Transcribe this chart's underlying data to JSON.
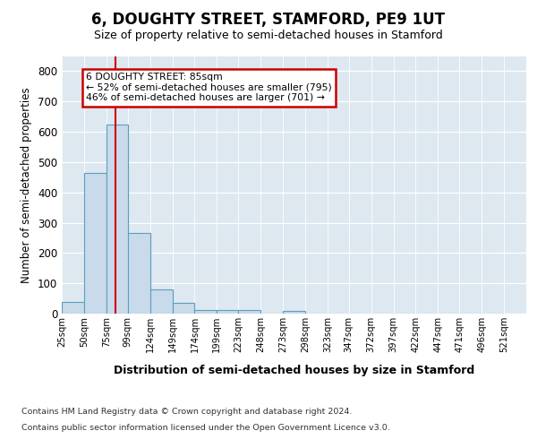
{
  "title": "6, DOUGHTY STREET, STAMFORD, PE9 1UT",
  "subtitle": "Size of property relative to semi-detached houses in Stamford",
  "xlabel": "Distribution of semi-detached houses by size in Stamford",
  "ylabel": "Number of semi-detached properties",
  "bins": [
    "25sqm",
    "50sqm",
    "75sqm",
    "99sqm",
    "124sqm",
    "149sqm",
    "174sqm",
    "199sqm",
    "223sqm",
    "248sqm",
    "273sqm",
    "298sqm",
    "323sqm",
    "347sqm",
    "372sqm",
    "397sqm",
    "422sqm",
    "447sqm",
    "471sqm",
    "496sqm",
    "521sqm"
  ],
  "bar_values": [
    37,
    465,
    625,
    265,
    80,
    35,
    13,
    13,
    13,
    0,
    10,
    0,
    0,
    0,
    0,
    0,
    0,
    0,
    0,
    0
  ],
  "bar_left_edges": [
    25,
    50,
    75,
    99,
    124,
    149,
    174,
    199,
    223,
    248,
    273,
    298,
    323,
    347,
    372,
    397,
    422,
    447,
    471,
    496
  ],
  "bar_widths": [
    25,
    25,
    24,
    25,
    25,
    25,
    25,
    24,
    25,
    25,
    25,
    25,
    24,
    25,
    25,
    25,
    25,
    24,
    25,
    25
  ],
  "property_size": 85,
  "pct_smaller": 52,
  "pct_larger": 46,
  "n_smaller": 795,
  "n_larger": 701,
  "bar_color": "#c9daea",
  "bar_edge_color": "#5b9fc0",
  "line_color": "#cc0000",
  "annotation_box_color": "#cc0000",
  "background_color": "#dde8f0",
  "ylim": [
    0,
    850
  ],
  "yticks": [
    0,
    100,
    200,
    300,
    400,
    500,
    600,
    700,
    800
  ],
  "footer_line1": "Contains HM Land Registry data © Crown copyright and database right 2024.",
  "footer_line2": "Contains public sector information licensed under the Open Government Licence v3.0."
}
